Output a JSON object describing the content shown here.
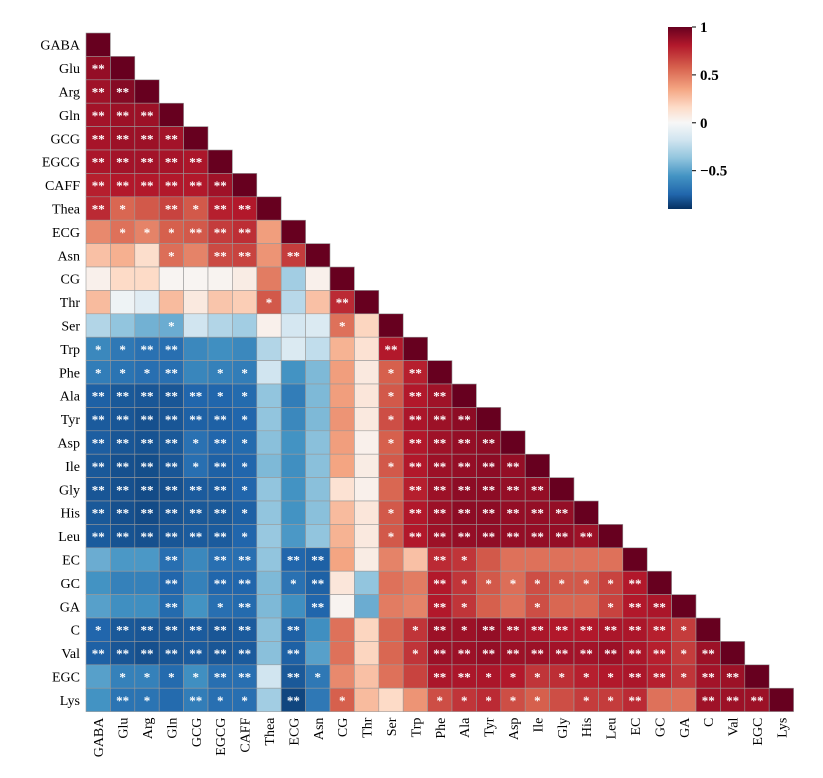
{
  "chart_data": {
    "type": "heatmap",
    "shape": "lower-triangle",
    "variables": [
      "GABA",
      "Glu",
      "Arg",
      "Gln",
      "GCG",
      "EGCG",
      "CAFF",
      "Thea",
      "ECG",
      "Asn",
      "CG",
      "Thr",
      "Ser",
      "Trp",
      "Phe",
      "Ala",
      "Tyr",
      "Asp",
      "Ile",
      "Gly",
      "His",
      "Leu",
      "EC",
      "GC",
      "GA",
      "C",
      "Val",
      "EGC",
      "Lys"
    ],
    "matrix": [
      [
        1.0
      ],
      [
        0.88,
        1.0
      ],
      [
        0.85,
        0.92,
        1.0
      ],
      [
        0.84,
        0.86,
        0.86,
        1.0
      ],
      [
        0.83,
        0.86,
        0.86,
        0.84,
        1.0
      ],
      [
        0.82,
        0.84,
        0.84,
        0.83,
        0.82,
        1.0
      ],
      [
        0.78,
        0.8,
        0.8,
        0.8,
        0.8,
        0.85,
        1.0
      ],
      [
        0.75,
        0.58,
        0.62,
        0.68,
        0.62,
        0.78,
        0.8,
        1.0
      ],
      [
        0.48,
        0.55,
        0.5,
        0.6,
        0.62,
        0.7,
        0.74,
        0.42,
        1.0
      ],
      [
        0.3,
        0.36,
        0.18,
        0.56,
        0.5,
        0.66,
        0.68,
        0.45,
        0.7,
        1.0
      ],
      [
        0.05,
        0.2,
        0.2,
        0.02,
        0.02,
        0.03,
        0.08,
        0.52,
        -0.35,
        0.05,
        1.0
      ],
      [
        0.32,
        -0.05,
        -0.12,
        0.32,
        0.1,
        0.28,
        0.25,
        0.62,
        -0.28,
        0.3,
        0.75,
        1.0
      ],
      [
        -0.3,
        -0.4,
        -0.48,
        -0.5,
        -0.2,
        -0.3,
        -0.35,
        0.05,
        -0.18,
        -0.15,
        0.55,
        0.22,
        1.0
      ],
      [
        -0.65,
        -0.72,
        -0.75,
        -0.76,
        -0.65,
        -0.62,
        -0.65,
        -0.3,
        -0.15,
        -0.25,
        0.35,
        0.15,
        0.8,
        1.0
      ],
      [
        -0.7,
        -0.74,
        -0.76,
        -0.76,
        -0.66,
        -0.68,
        -0.7,
        -0.2,
        -0.6,
        -0.45,
        0.42,
        0.1,
        0.6,
        0.78,
        1.0
      ],
      [
        -0.82,
        -0.85,
        -0.86,
        -0.86,
        -0.8,
        -0.8,
        -0.78,
        -0.4,
        -0.7,
        -0.45,
        0.42,
        0.12,
        0.62,
        0.8,
        0.85,
        1.0
      ],
      [
        -0.84,
        -0.86,
        -0.88,
        -0.86,
        -0.82,
        -0.82,
        -0.8,
        -0.4,
        -0.65,
        -0.45,
        0.45,
        0.1,
        0.65,
        0.82,
        0.86,
        0.9,
        1.0
      ],
      [
        -0.83,
        -0.86,
        -0.87,
        -0.85,
        -0.75,
        -0.8,
        -0.78,
        -0.42,
        -0.6,
        -0.42,
        0.42,
        0.05,
        0.6,
        0.8,
        0.85,
        0.88,
        0.9,
        1.0
      ],
      [
        -0.85,
        -0.88,
        -0.89,
        -0.86,
        -0.76,
        -0.82,
        -0.8,
        -0.45,
        -0.62,
        -0.42,
        0.4,
        0.08,
        0.62,
        0.8,
        0.86,
        0.88,
        0.9,
        0.88,
        1.0
      ],
      [
        -0.86,
        -0.88,
        -0.9,
        -0.88,
        -0.84,
        -0.84,
        -0.8,
        -0.4,
        -0.6,
        -0.42,
        0.15,
        0.05,
        0.58,
        0.78,
        0.86,
        0.9,
        0.9,
        0.88,
        0.88,
        1.0
      ],
      [
        -0.85,
        -0.88,
        -0.9,
        -0.87,
        -0.85,
        -0.85,
        -0.82,
        -0.4,
        -0.6,
        -0.42,
        0.32,
        0.12,
        0.62,
        0.8,
        0.86,
        0.9,
        0.9,
        0.88,
        0.88,
        0.88,
        1.0
      ],
      [
        -0.84,
        -0.87,
        -0.88,
        -0.86,
        -0.84,
        -0.84,
        -0.8,
        -0.38,
        -0.58,
        -0.4,
        0.35,
        0.1,
        0.62,
        0.8,
        0.86,
        0.88,
        0.89,
        0.88,
        0.88,
        0.88,
        0.86,
        1.0
      ],
      [
        -0.5,
        -0.58,
        -0.58,
        -0.76,
        -0.65,
        -0.76,
        -0.76,
        -0.4,
        -0.8,
        -0.82,
        0.4,
        0.08,
        0.5,
        0.3,
        0.75,
        0.72,
        0.62,
        0.55,
        0.55,
        0.55,
        0.55,
        0.55,
        1.0
      ],
      [
        -0.6,
        -0.68,
        -0.68,
        -0.8,
        -0.68,
        -0.8,
        -0.8,
        -0.45,
        -0.75,
        -0.82,
        0.12,
        -0.4,
        0.55,
        0.52,
        0.8,
        0.72,
        0.62,
        0.56,
        0.65,
        0.62,
        0.62,
        0.68,
        0.8,
        1.0
      ],
      [
        -0.55,
        -0.62,
        -0.62,
        -0.78,
        -0.6,
        -0.76,
        -0.78,
        -0.45,
        -0.62,
        -0.8,
        0.03,
        -0.5,
        0.52,
        0.5,
        0.8,
        0.72,
        0.6,
        0.55,
        0.65,
        0.58,
        0.58,
        0.68,
        0.8,
        0.82,
        1.0
      ],
      [
        -0.8,
        -0.85,
        -0.86,
        -0.86,
        -0.84,
        -0.86,
        -0.84,
        -0.42,
        -0.82,
        -0.62,
        0.55,
        0.22,
        0.58,
        0.72,
        0.86,
        0.86,
        0.88,
        0.84,
        0.82,
        0.8,
        0.8,
        0.82,
        0.82,
        0.78,
        0.7,
        1.0
      ],
      [
        -0.82,
        -0.86,
        -0.88,
        -0.86,
        -0.84,
        -0.86,
        -0.84,
        -0.42,
        -0.82,
        -0.55,
        0.55,
        0.22,
        0.58,
        0.72,
        0.86,
        0.86,
        0.88,
        0.86,
        0.86,
        0.84,
        0.84,
        0.86,
        0.82,
        0.78,
        0.7,
        0.86,
        1.0
      ],
      [
        -0.55,
        -0.68,
        -0.68,
        -0.78,
        -0.62,
        -0.76,
        -0.76,
        -0.2,
        -0.85,
        -0.72,
        0.48,
        0.3,
        0.55,
        0.68,
        0.82,
        0.82,
        0.82,
        0.8,
        0.72,
        0.74,
        0.78,
        0.8,
        0.82,
        0.78,
        0.72,
        0.84,
        0.86,
        1.0
      ],
      [
        -0.6,
        -0.74,
        -0.74,
        -0.78,
        -0.7,
        -0.76,
        -0.76,
        -0.35,
        -0.92,
        -0.72,
        0.6,
        0.32,
        0.2,
        0.45,
        0.65,
        0.72,
        0.75,
        0.65,
        0.6,
        0.65,
        0.7,
        0.7,
        0.75,
        0.55,
        0.55,
        0.85,
        0.86,
        0.86,
        1.0
      ]
    ],
    "significance": [
      [
        ""
      ],
      [
        "**",
        ""
      ],
      [
        "**",
        "**",
        ""
      ],
      [
        "**",
        "**",
        "**",
        ""
      ],
      [
        "**",
        "**",
        "**",
        "**",
        ""
      ],
      [
        "**",
        "**",
        "**",
        "**",
        "**",
        ""
      ],
      [
        "**",
        "**",
        "**",
        "**",
        "**",
        "**",
        ""
      ],
      [
        "**",
        "*",
        "",
        "**",
        "*",
        "**",
        "**",
        ""
      ],
      [
        "",
        "*",
        "*",
        "*",
        "**",
        "**",
        "**",
        "",
        ""
      ],
      [
        "",
        "",
        "",
        "*",
        "",
        "**",
        "**",
        "",
        "**",
        ""
      ],
      [
        "",
        "",
        "",
        "",
        "",
        "",
        "",
        "",
        "",
        "",
        ""
      ],
      [
        "",
        "",
        "",
        "",
        "",
        "",
        "",
        "*",
        "",
        "",
        "**",
        ""
      ],
      [
        "",
        "",
        "",
        "*",
        "",
        "",
        "",
        "",
        "",
        "",
        "*",
        "",
        ""
      ],
      [
        "*",
        "*",
        "**",
        "**",
        "",
        "",
        "",
        "",
        "",
        "",
        "",
        "",
        "**",
        ""
      ],
      [
        "*",
        "*",
        "*",
        "**",
        "",
        "*",
        "*",
        "",
        "",
        "",
        "",
        "",
        "*",
        "**",
        ""
      ],
      [
        "**",
        "**",
        "**",
        "**",
        "**",
        "*",
        "*",
        "",
        "",
        "",
        "",
        "",
        "*",
        "**",
        "**",
        ""
      ],
      [
        "**",
        "**",
        "**",
        "**",
        "**",
        "**",
        "*",
        "",
        "",
        "",
        "",
        "",
        "*",
        "**",
        "**",
        "**",
        ""
      ],
      [
        "**",
        "**",
        "**",
        "**",
        "*",
        "**",
        "*",
        "",
        "",
        "",
        "",
        "",
        "*",
        "**",
        "**",
        "**",
        "**",
        ""
      ],
      [
        "**",
        "**",
        "**",
        "**",
        "*",
        "**",
        "*",
        "",
        "",
        "",
        "",
        "",
        "*",
        "**",
        "**",
        "**",
        "**",
        "**",
        ""
      ],
      [
        "**",
        "**",
        "**",
        "**",
        "**",
        "**",
        "*",
        "",
        "",
        "",
        "",
        "",
        "",
        "**",
        "**",
        "**",
        "**",
        "**",
        "**",
        ""
      ],
      [
        "**",
        "**",
        "**",
        "**",
        "**",
        "**",
        "*",
        "",
        "",
        "",
        "",
        "",
        "*",
        "**",
        "**",
        "**",
        "**",
        "**",
        "**",
        "**",
        ""
      ],
      [
        "**",
        "**",
        "**",
        "**",
        "**",
        "**",
        "*",
        "",
        "",
        "",
        "",
        "",
        "*",
        "**",
        "**",
        "**",
        "**",
        "**",
        "**",
        "**",
        "**",
        ""
      ],
      [
        "",
        "",
        "",
        "**",
        "",
        "**",
        "**",
        "",
        "**",
        "**",
        "",
        "",
        "",
        "",
        "**",
        "*",
        "",
        "",
        "",
        "",
        "",
        "",
        ""
      ],
      [
        "",
        "",
        "",
        "**",
        "",
        "**",
        "**",
        "",
        "*",
        "**",
        "",
        "",
        "",
        "",
        "**",
        "*",
        "*",
        "*",
        "*",
        "*",
        "*",
        "*",
        "**",
        ""
      ],
      [
        "",
        "",
        "",
        "**",
        "",
        "*",
        "**",
        "",
        "",
        "**",
        "",
        "",
        "",
        "",
        "**",
        "*",
        "",
        "",
        "*",
        "",
        "",
        "*",
        "**",
        "**",
        ""
      ],
      [
        "*",
        "**",
        "**",
        "**",
        "**",
        "**",
        "**",
        "",
        "**",
        "",
        "",
        "",
        "",
        "*",
        "**",
        "*",
        "**",
        "**",
        "**",
        "**",
        "**",
        "**",
        "**",
        "**",
        "*",
        ""
      ],
      [
        "**",
        "**",
        "**",
        "**",
        "**",
        "**",
        "**",
        "",
        "**",
        "",
        "",
        "",
        "",
        "*",
        "**",
        "**",
        "**",
        "**",
        "**",
        "**",
        "**",
        "**",
        "**",
        "**",
        "*",
        "**",
        ""
      ],
      [
        "",
        "*",
        "*",
        "*",
        "*",
        "**",
        "**",
        "",
        "**",
        "*",
        "",
        "",
        "",
        "",
        "**",
        "**",
        "*",
        "*",
        "*",
        "*",
        "*",
        "*",
        "**",
        "**",
        "*",
        "**",
        "**",
        ""
      ],
      [
        "",
        "**",
        "*",
        "",
        "**",
        "*",
        "*",
        "",
        "**",
        "",
        "*",
        "",
        "",
        "",
        "*",
        "*",
        "*",
        "*",
        "*",
        "",
        "*",
        "*",
        "**",
        "",
        "",
        "**",
        "**",
        "**",
        ""
      ]
    ],
    "colorbar": {
      "range": [
        -0.9,
        1.0
      ],
      "ticks": [
        1,
        0.5,
        0,
        -0.5
      ],
      "tick_labels": [
        "1",
        "0.5",
        "0",
        "−0.5"
      ],
      "placement": "top-right",
      "colormap": "RdBu_r"
    }
  }
}
